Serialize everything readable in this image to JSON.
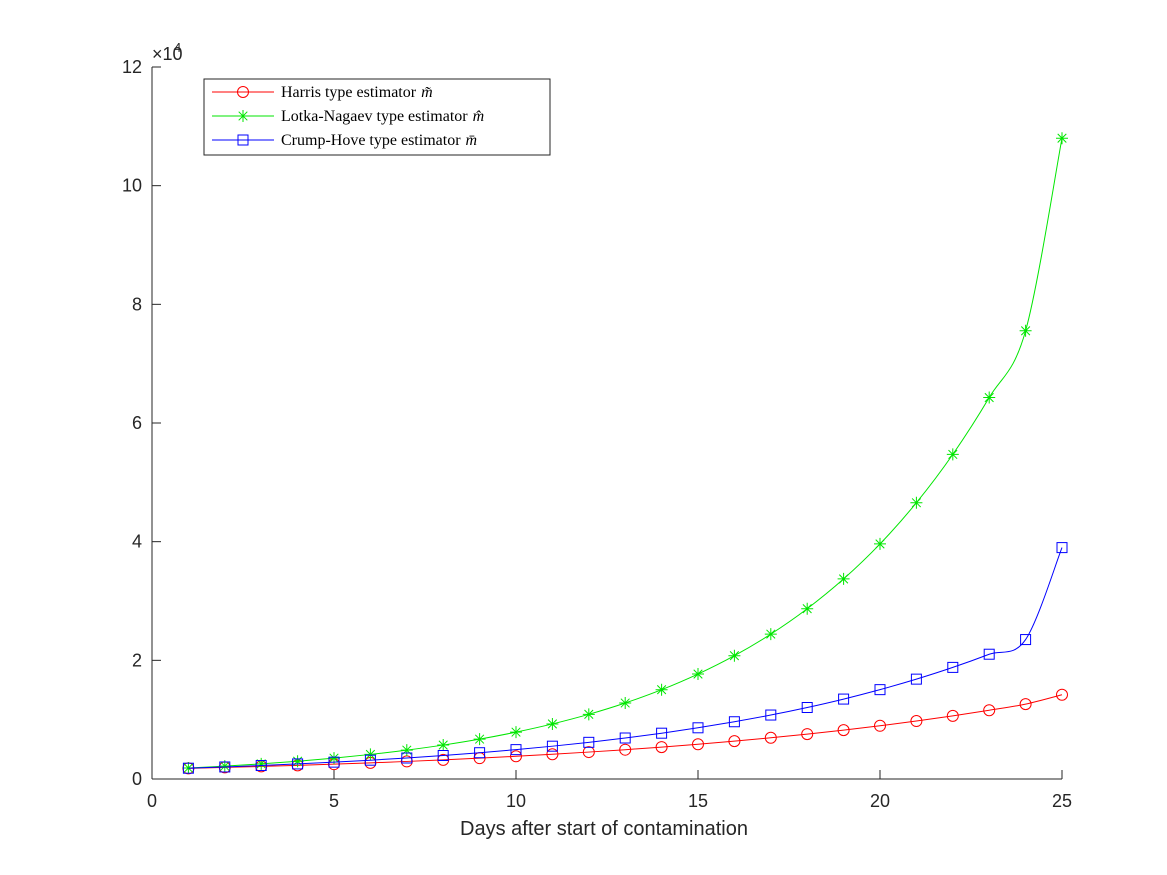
{
  "chart_data": {
    "type": "line",
    "xlabel": "Days after start of contamination",
    "ylabel": "",
    "xlim": [
      0,
      25
    ],
    "ylim": [
      0,
      120000
    ],
    "xticks": [
      "0",
      "5",
      "10",
      "15",
      "20",
      "25"
    ],
    "yticks": [
      "0",
      "2",
      "4",
      "6",
      "8",
      "10",
      "12"
    ],
    "y_exponent_base": "×10",
    "y_exponent_power": "4",
    "grid": false,
    "legend_position": "top-left",
    "x": [
      1,
      2,
      3,
      4,
      5,
      6,
      7,
      8,
      9,
      10,
      11,
      12,
      13,
      14,
      15,
      16,
      17,
      18,
      19,
      20,
      21,
      22,
      23,
      24,
      25
    ],
    "series": [
      {
        "name": "Harris type estimator",
        "symbol": "m̃",
        "color": "#ff0000",
        "marker": "circle",
        "values": [
          1800,
          1950,
          2120,
          2300,
          2500,
          2720,
          2960,
          3220,
          3510,
          3830,
          4170,
          4540,
          4940,
          5380,
          5860,
          6380,
          6950,
          7570,
          8240,
          8970,
          9770,
          10640,
          11590,
          12620,
          14200
        ]
      },
      {
        "name": "Lotka-Nagaev type estimator",
        "symbol": "m̂",
        "color": "#00e600",
        "marker": "asterisk",
        "values": [
          1850,
          2170,
          2550,
          3000,
          3520,
          4140,
          4870,
          5720,
          6720,
          7900,
          9280,
          10900,
          12810,
          15050,
          17690,
          20780,
          24420,
          28700,
          33720,
          39620,
          46560,
          54710,
          64290,
          75540,
          108000
        ]
      },
      {
        "name": "Crump-Hove type estimator",
        "symbol": "m̄",
        "color": "#0000ff",
        "marker": "square",
        "values": [
          1820,
          2030,
          2270,
          2540,
          2840,
          3170,
          3540,
          3960,
          4430,
          4950,
          5530,
          6180,
          6910,
          7720,
          8630,
          9650,
          10780,
          12050,
          13470,
          15060,
          16830,
          18810,
          21030,
          23500,
          39000
        ]
      }
    ]
  }
}
